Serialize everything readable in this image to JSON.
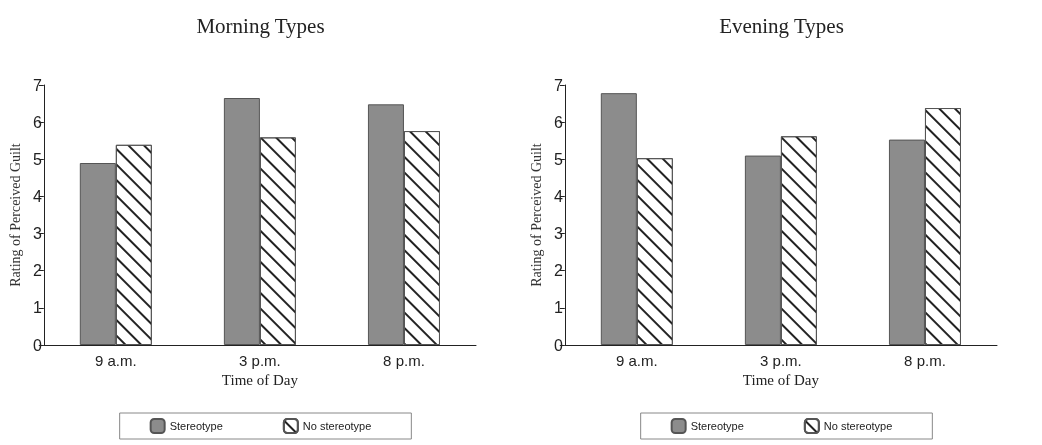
{
  "chart_data": [
    {
      "type": "bar",
      "title": "Morning Types",
      "xlabel": "Time of Day",
      "ylabel": "Rating of Perceived Guilt",
      "categories": [
        "9 a.m.",
        "3 p.m.",
        "8 p.m."
      ],
      "ylim": [
        0,
        7
      ],
      "yticks": [
        0,
        1,
        2,
        3,
        4,
        5,
        6,
        7
      ],
      "grid": false,
      "legend": "bottom",
      "series": [
        {
          "name": "Stereotype",
          "color": "#8c8c8c",
          "values": [
            4.9,
            6.65,
            6.48
          ]
        },
        {
          "name": "No stereotype",
          "color": "#ffffff",
          "values": [
            5.39,
            5.59,
            5.76
          ]
        }
      ]
    },
    {
      "type": "bar",
      "title": "Evening Types",
      "xlabel": "Time of Day",
      "ylabel": "Rating of Perceived Guilt",
      "categories": [
        "9 a.m.",
        "3 p.m.",
        "8 p.m."
      ],
      "ylim": [
        0,
        7
      ],
      "yticks": [
        0,
        1,
        2,
        3,
        4,
        5,
        6,
        7
      ],
      "grid": false,
      "legend": "bottom",
      "series": [
        {
          "name": "Stereotype",
          "color": "#8c8c8c",
          "values": [
            6.78,
            5.1,
            5.53
          ]
        },
        {
          "name": "No stereotype",
          "color": "#ffffff",
          "values": [
            5.03,
            5.62,
            6.38
          ]
        }
      ]
    }
  ]
}
